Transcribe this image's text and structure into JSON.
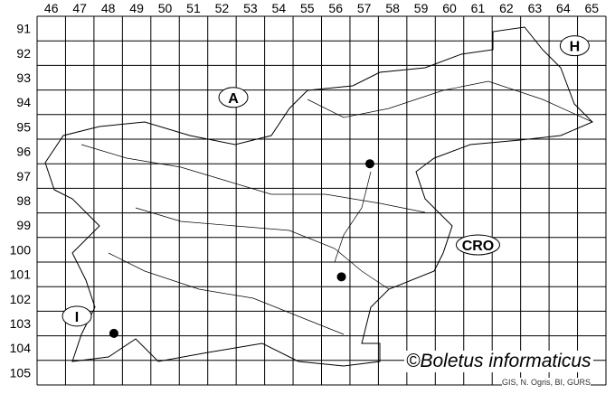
{
  "map": {
    "columns": [
      "46",
      "47",
      "48",
      "49",
      "50",
      "51",
      "52",
      "53",
      "54",
      "55",
      "56",
      "57",
      "58",
      "59",
      "60",
      "61",
      "62",
      "63",
      "64",
      "65"
    ],
    "rows": [
      "91",
      "92",
      "93",
      "94",
      "95",
      "96",
      "97",
      "98",
      "99",
      "100",
      "101",
      "102",
      "103",
      "104",
      "105"
    ],
    "country_labels": [
      {
        "text": "A",
        "col": 52.9,
        "row": 94.3
      },
      {
        "text": "H",
        "col": 64.9,
        "row": 92.2
      },
      {
        "text": "CRO",
        "col": 61.5,
        "row": 100.3
      },
      {
        "text": "I",
        "col": 47.4,
        "row": 103.2
      }
    ],
    "records": [
      {
        "col": 57.7,
        "row": 97.0
      },
      {
        "col": 56.7,
        "row": 101.6
      },
      {
        "col": 48.7,
        "row": 103.9
      }
    ],
    "marker_color": "#000000",
    "copyright": "©Boletus informaticus",
    "source": "GIS, N. Ogris, BI, GURS"
  }
}
